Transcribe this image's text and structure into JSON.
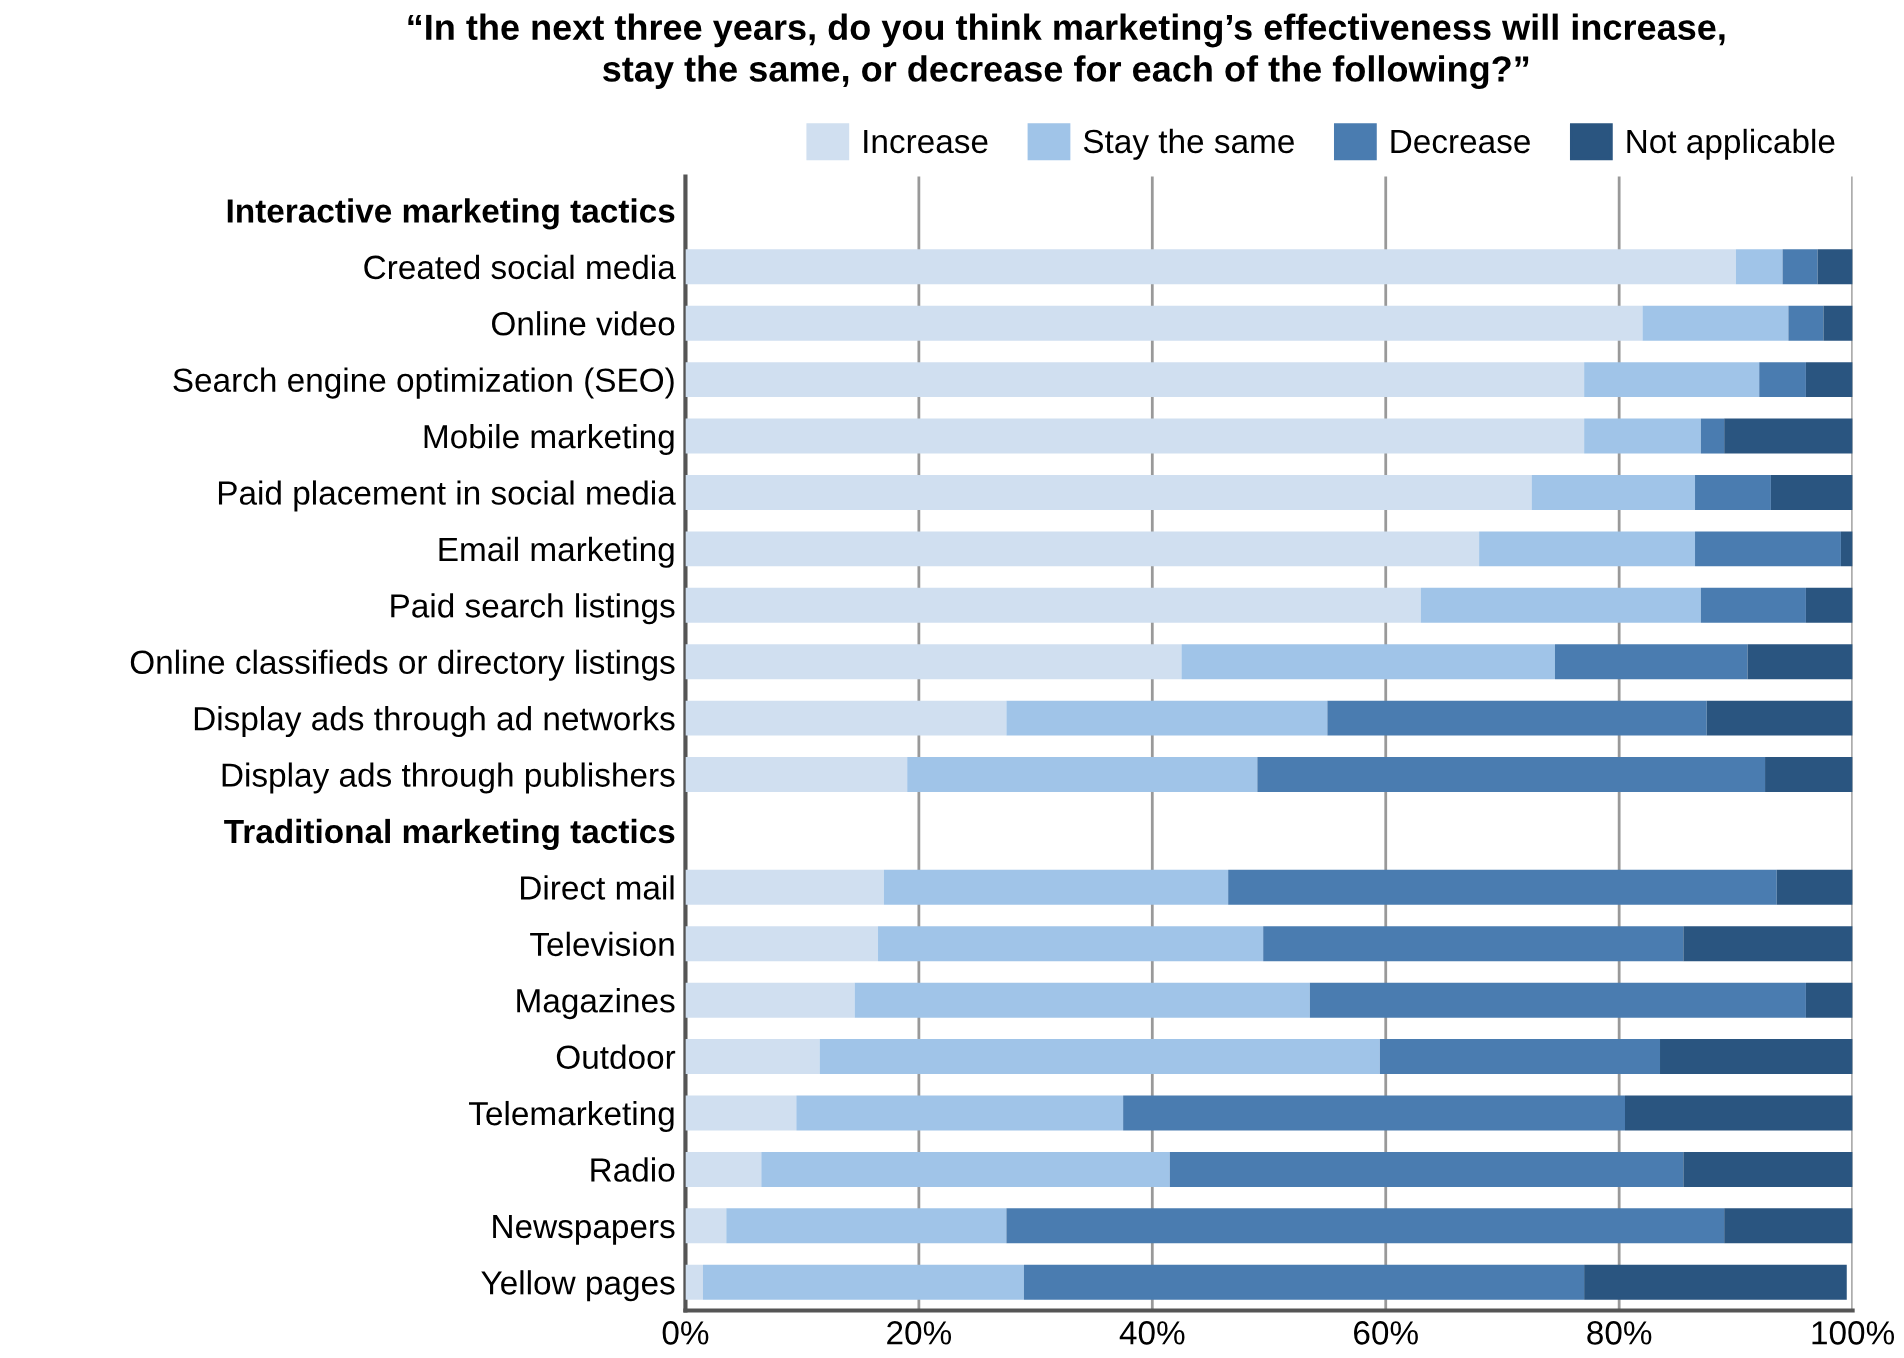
{
  "chart_data": {
    "type": "bar",
    "orientation": "horizontal",
    "stacked": true,
    "title": "“In the next three years, do you think marketing’s effectiveness will increase,\nstay the same, or decrease for each of the following?”",
    "categories": [
      "Interactive marketing tactics",
      "Created social media",
      "Online video",
      "Search engine optimization (SEO)",
      "Mobile marketing",
      "Paid placement in social media",
      "Email marketing",
      "Paid search listings",
      "Online classifieds or directory listings",
      "Display ads through ad networks",
      "Display ads through publishers",
      "Traditional marketing tactics",
      "Direct mail",
      "Television",
      "Magazines",
      "Outdoor",
      "Telemarketing",
      "Radio",
      "Newspapers",
      "Yellow pages"
    ],
    "series": [
      {
        "name": "Increase",
        "color": "#d0dff0",
        "values": [
          null,
          90,
          82,
          77,
          77,
          72.5,
          68,
          63,
          42.5,
          27.5,
          19,
          null,
          17,
          16.5,
          14.5,
          11.5,
          9.5,
          6.5,
          3.5,
          1.5
        ]
      },
      {
        "name": "Stay the same",
        "color": "#a0c4e8",
        "values": [
          null,
          4,
          12.5,
          15,
          10,
          14,
          18.5,
          24,
          32,
          27.5,
          30,
          null,
          29.5,
          33,
          39,
          48,
          28,
          35,
          24,
          27.5
        ]
      },
      {
        "name": "Decrease",
        "color": "#4a7cb0",
        "values": [
          null,
          3,
          3,
          4,
          2,
          6.5,
          12.5,
          9,
          16.5,
          32.5,
          43.5,
          null,
          47,
          36,
          42.5,
          24,
          43,
          44,
          61.5,
          48
        ]
      },
      {
        "name": "Not applicable",
        "color": "#2a5580",
        "values": [
          null,
          3,
          2.5,
          4,
          11,
          7,
          1,
          4,
          9,
          12.5,
          7.5,
          null,
          6.5,
          14.5,
          4,
          16.5,
          19.5,
          14.5,
          11,
          22.5
        ]
      }
    ],
    "xlim": [
      0,
      100
    ],
    "xticks": [
      {
        "value": 0,
        "label": "0%"
      },
      {
        "value": 20,
        "label": "20%"
      },
      {
        "value": 40,
        "label": "40%"
      },
      {
        "value": 60,
        "label": "60%"
      },
      {
        "value": 80,
        "label": "80%"
      },
      {
        "value": 100,
        "label": "100%"
      }
    ],
    "grid": "x",
    "legend": "top right"
  }
}
